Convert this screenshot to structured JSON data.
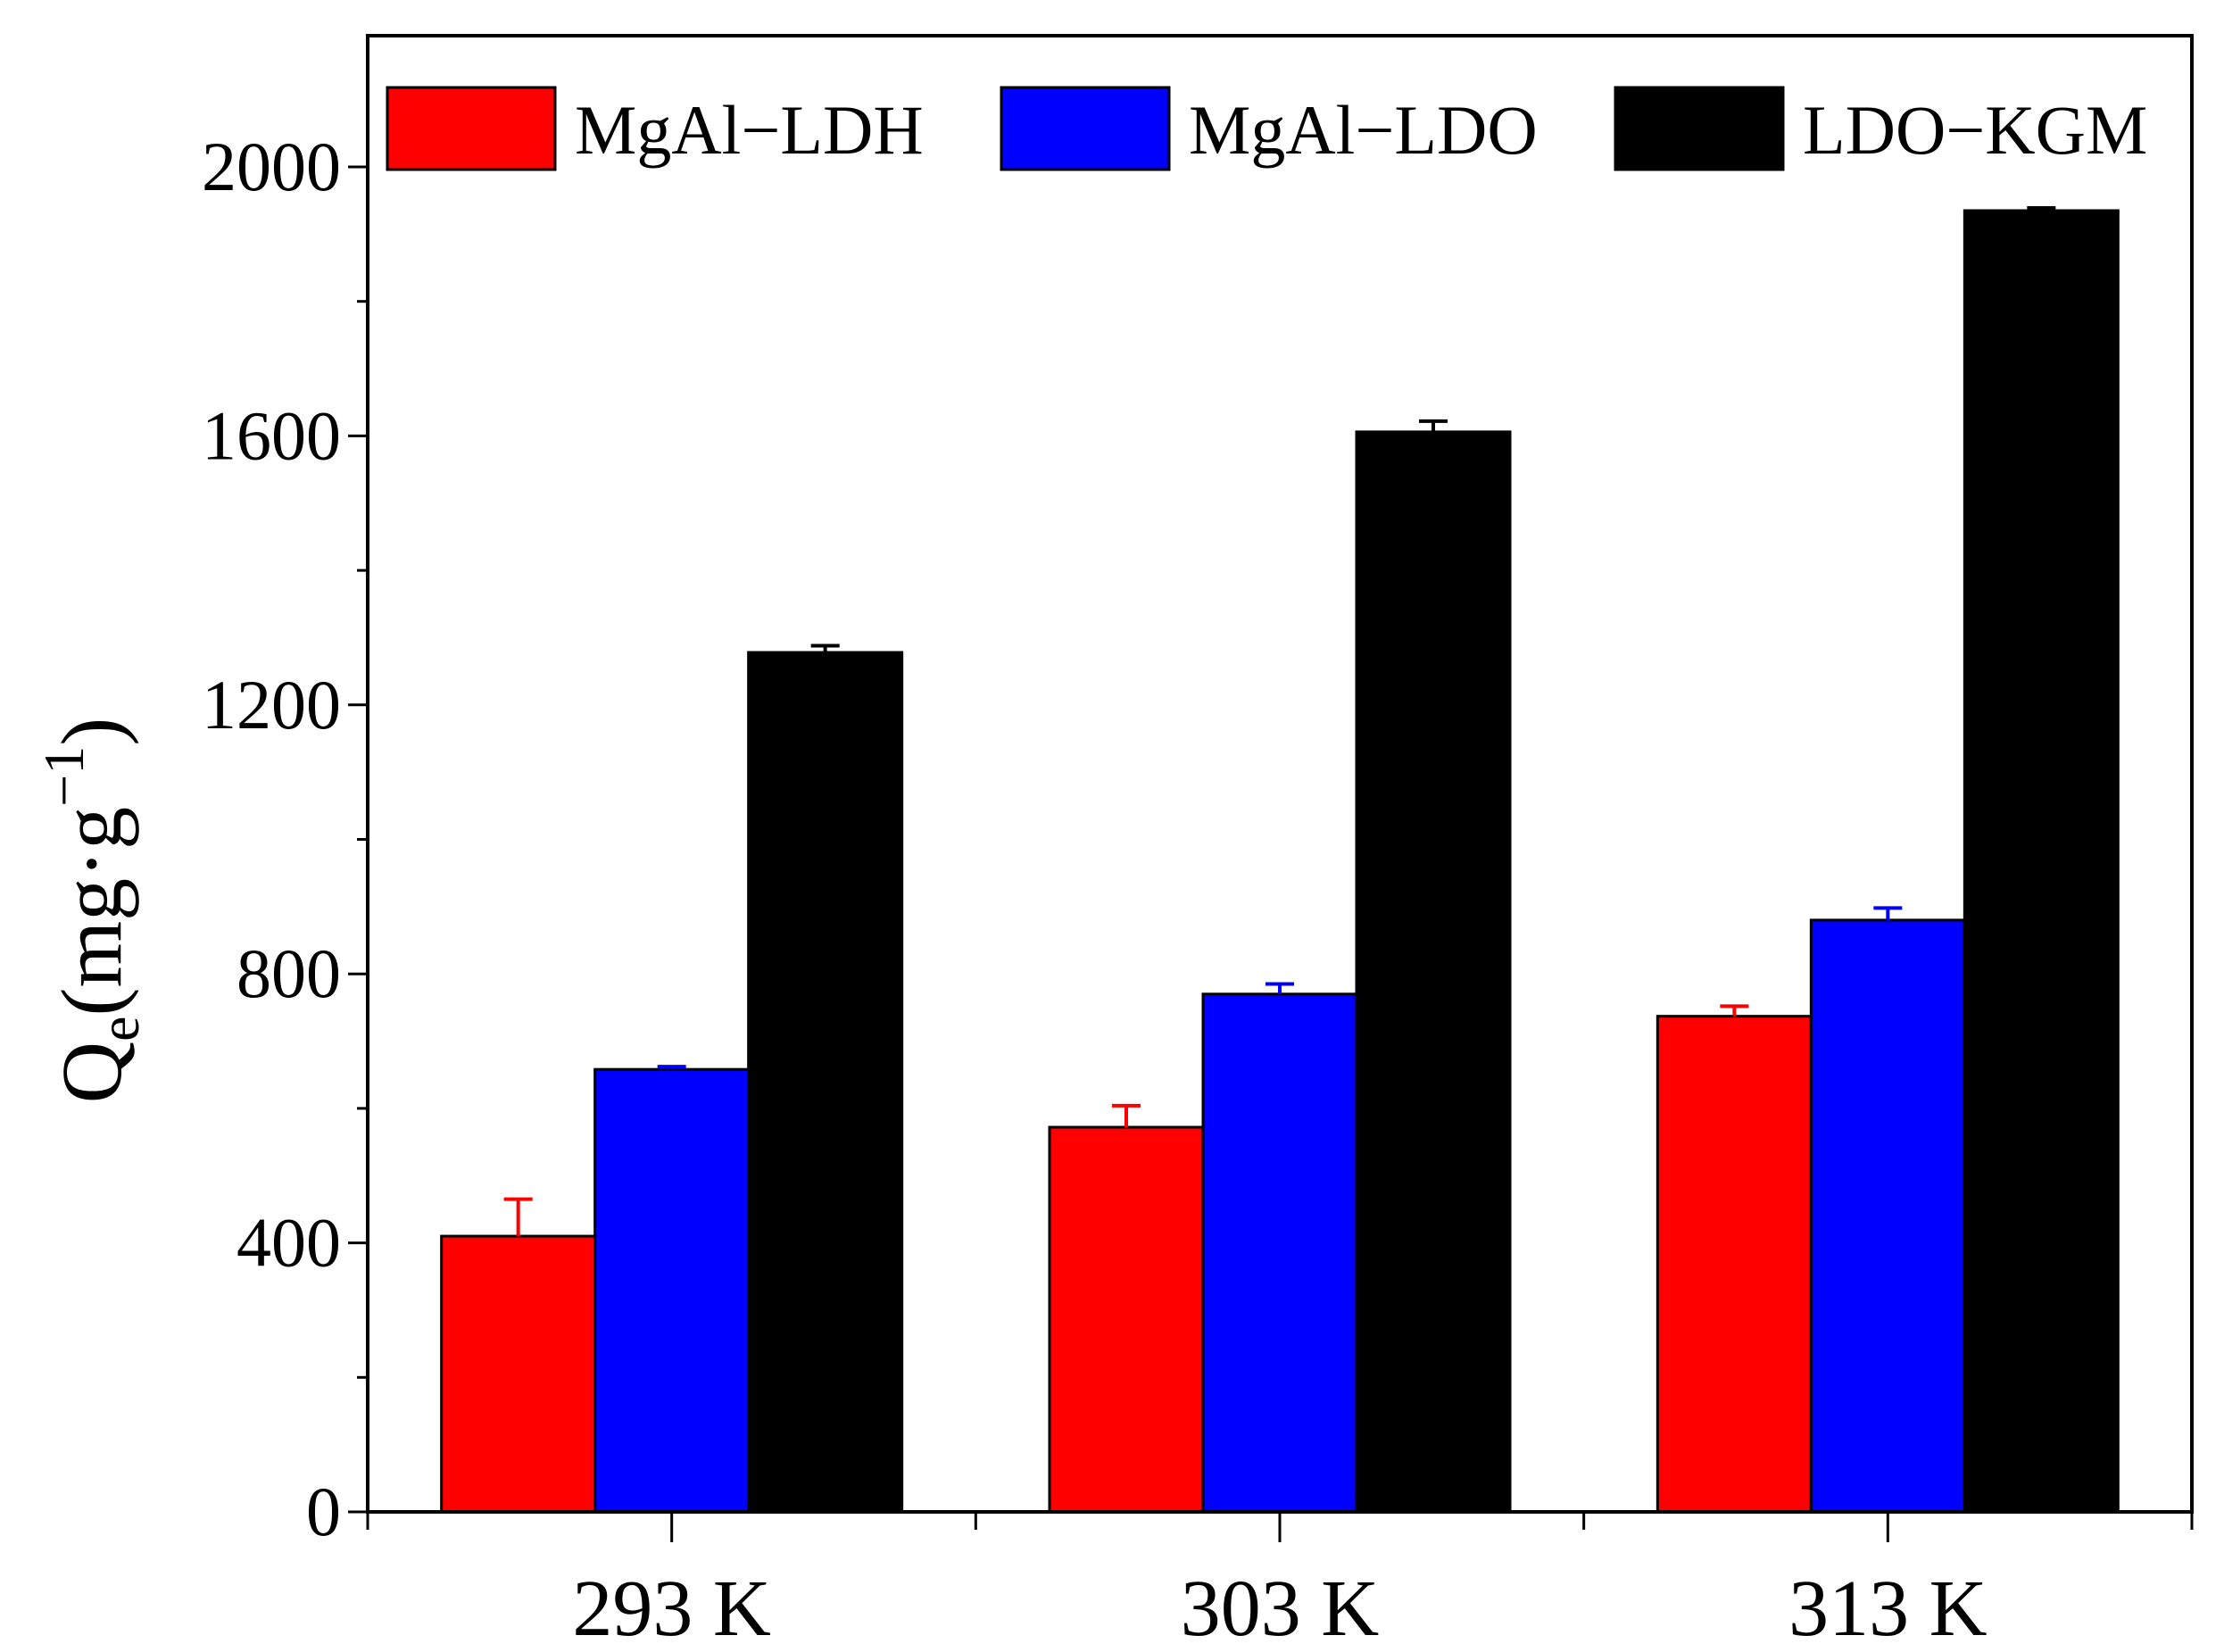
{
  "chart_data": {
    "type": "bar",
    "title": "",
    "xlabel": "",
    "ylabel": {
      "main": "Q",
      "subscript": "e",
      "unit_open": "(mg·g",
      "unit_sup": "−1",
      "unit_close": ")"
    },
    "categories": [
      "293 K",
      "303 K",
      "313 K"
    ],
    "ylim": [
      0,
      2200
    ],
    "yticks": [
      0,
      400,
      800,
      1200,
      1600,
      2000
    ],
    "yticks_labeled": [
      "0",
      "400",
      "800",
      "1200",
      "1600",
      "2000"
    ],
    "grid": false,
    "legend_position": "top",
    "series": [
      {
        "name": "MgAl−LDH",
        "color": "#ff0000",
        "values": [
          410,
          572,
          737
        ],
        "errors": [
          55,
          32,
          15
        ]
      },
      {
        "name": "MgAl−LDO",
        "color": "#0000ff",
        "values": [
          658,
          770,
          880
        ],
        "errors": [
          4,
          15,
          18
        ]
      },
      {
        "name": "LDO−KGM",
        "color": "#000000",
        "values": [
          1278,
          1606,
          1935
        ],
        "errors": [
          10,
          16,
          4
        ]
      }
    ]
  }
}
